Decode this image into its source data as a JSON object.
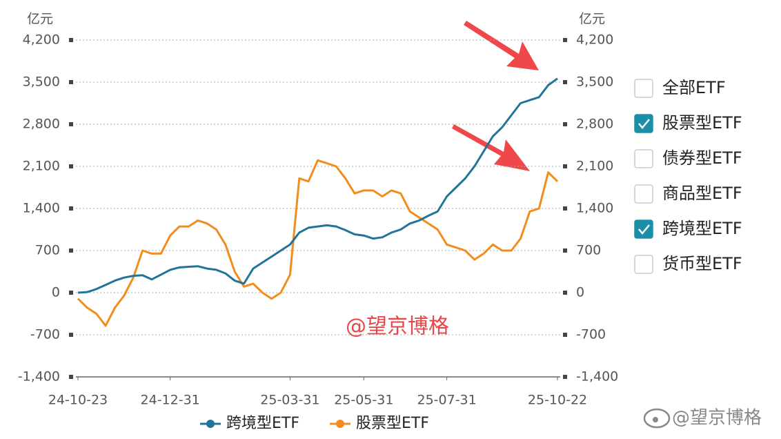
{
  "chart_data": {
    "type": "line",
    "y_label": "亿元",
    "y2_label": "亿元",
    "categories": [
      "24-10-23",
      null,
      null,
      null,
      null,
      null,
      null,
      null,
      null,
      null,
      "24-12-31",
      null,
      null,
      null,
      null,
      null,
      null,
      null,
      null,
      null,
      null,
      null,
      null,
      "25-03-31",
      null,
      null,
      null,
      null,
      null,
      null,
      null,
      "25-05-31",
      null,
      null,
      null,
      null,
      null,
      null,
      null,
      null,
      "25-07-31",
      null,
      null,
      null,
      null,
      null,
      null,
      null,
      null,
      null,
      null,
      null,
      "25-10-22"
    ],
    "series": [
      {
        "name": "跨境型ETF",
        "color": "#22739a",
        "values": [
          0,
          10,
          60,
          130,
          200,
          250,
          280,
          290,
          220,
          300,
          380,
          420,
          430,
          440,
          400,
          380,
          320,
          200,
          150,
          400,
          500,
          600,
          700,
          800,
          1000,
          1080,
          1100,
          1120,
          1100,
          1040,
          970,
          950,
          900,
          920,
          1000,
          1050,
          1150,
          1200,
          1280,
          1350,
          1600,
          1750,
          1900,
          2100,
          2350,
          2600,
          2750,
          2950,
          3150,
          3200,
          3250,
          3450,
          3560
        ]
      },
      {
        "name": "股票型ETF",
        "color": "#f28c1c",
        "values": [
          -100,
          -250,
          -350,
          -550,
          -250,
          -50,
          250,
          700,
          650,
          650,
          950,
          1100,
          1100,
          1200,
          1150,
          1050,
          800,
          350,
          100,
          150,
          0,
          -100,
          0,
          300,
          1900,
          1850,
          2200,
          2150,
          2100,
          1900,
          1650,
          1700,
          1700,
          1600,
          1700,
          1650,
          1350,
          1250,
          1150,
          1050,
          800,
          750,
          700,
          550,
          650,
          800,
          700,
          700,
          900,
          1350,
          1400,
          2000,
          1850
        ],
        "axis": "y"
      }
    ],
    "ylim": [
      -1400,
      4200
    ],
    "yticks": [
      {
        "value": -1400,
        "label": "-1,400"
      },
      -700,
      0,
      700,
      {
        "value": 1400,
        "label": "1,400"
      },
      {
        "value": 2100,
        "label": "2,100"
      },
      {
        "value": 2800,
        "label": "2,800"
      },
      {
        "value": 3500,
        "label": "3,500"
      },
      {
        "value": 4200,
        "label": "4,200"
      }
    ],
    "y2lim": [
      -1400,
      4200
    ],
    "y2ticks": [
      {
        "value": -1400,
        "label": "-1,400"
      },
      -700,
      0,
      700,
      {
        "value": 1400,
        "label": "1,400"
      },
      {
        "value": 2100,
        "label": "2,100"
      },
      {
        "value": 2800,
        "label": "2,800"
      },
      {
        "value": 3500,
        "label": "3,500"
      },
      {
        "value": 4200,
        "label": "4,200"
      }
    ],
    "grid": true,
    "legend": "bottom",
    "watermark": "@望京博格"
  },
  "filters": [
    {
      "label": "全部ETF",
      "checked": false
    },
    {
      "label": "股票型ETF",
      "checked": true
    },
    {
      "label": "债券型ETF",
      "checked": false
    },
    {
      "label": "商品型ETF",
      "checked": false
    },
    {
      "label": "跨境型ETF",
      "checked": true
    },
    {
      "label": "货币型ETF",
      "checked": false
    }
  ],
  "footer_watermark": "@望京博格"
}
